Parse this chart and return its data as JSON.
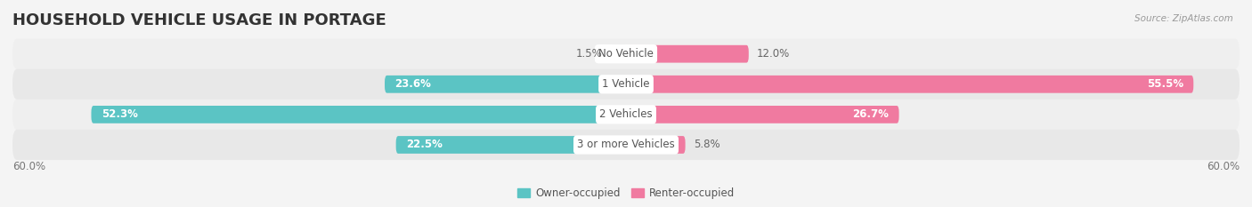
{
  "title": "HOUSEHOLD VEHICLE USAGE IN PORTAGE",
  "source": "Source: ZipAtlas.com",
  "categories": [
    "No Vehicle",
    "1 Vehicle",
    "2 Vehicles",
    "3 or more Vehicles"
  ],
  "owner_values": [
    1.5,
    23.6,
    52.3,
    22.5
  ],
  "renter_values": [
    12.0,
    55.5,
    26.7,
    5.8
  ],
  "owner_color": "#5bc4c4",
  "renter_color": "#f07aa0",
  "background_color": "#f4f4f4",
  "row_bg_light": "#efefef",
  "row_bg_dark": "#e8e8e8",
  "axis_limit": 60.0,
  "legend_owner": "Owner-occupied",
  "legend_renter": "Renter-occupied",
  "axis_label_left": "60.0%",
  "axis_label_right": "60.0%",
  "bar_height": 0.58,
  "label_inside_threshold_owner": 15,
  "label_inside_threshold_renter": 20,
  "title_fontsize": 13,
  "label_fontsize": 8.5,
  "source_fontsize": 7.5
}
